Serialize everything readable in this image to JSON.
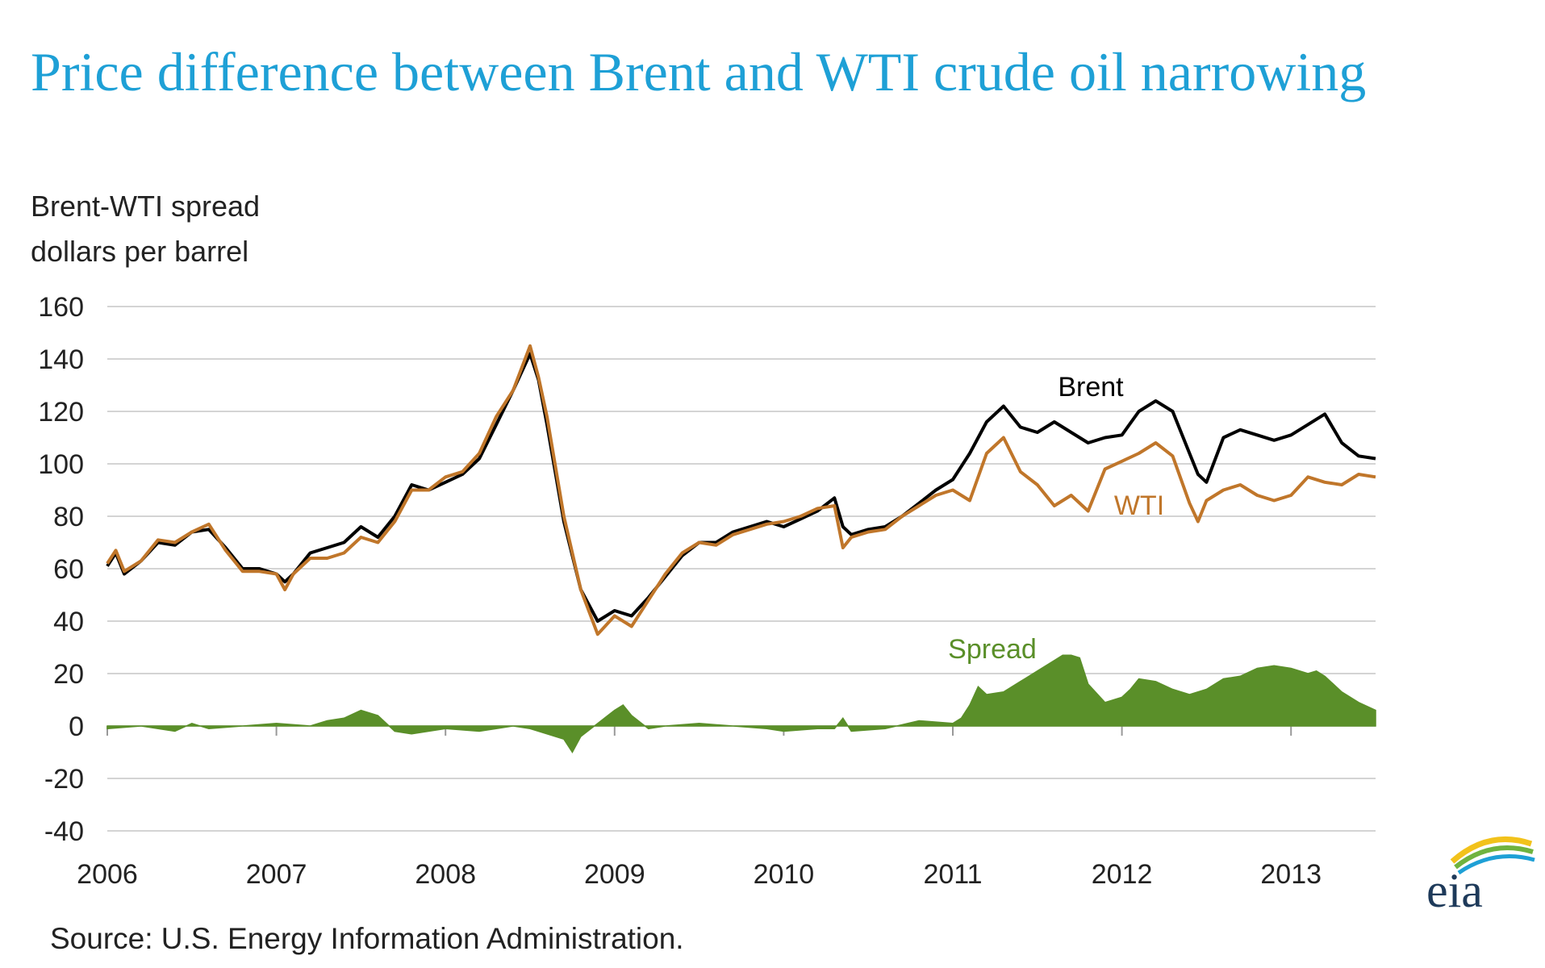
{
  "title": "Price difference between Brent and WTI crude oil narrowing",
  "source": "Source: U.S. Energy Information Administration.",
  "logo_text": "eia",
  "colors": {
    "title": "#1ea0d6",
    "brent": "#000000",
    "wti": "#c0762a",
    "spread": "#5a8f29",
    "grid": "#d4d4d4"
  },
  "chart_data": {
    "type": "line",
    "ylabel": [
      "Brent-WTI spread",
      "dollars per barrel"
    ],
    "ylim": [
      -40,
      160
    ],
    "yticks": [
      160,
      140,
      120,
      100,
      80,
      60,
      40,
      20,
      0,
      -20,
      -40
    ],
    "xlim": [
      2006.0,
      2013.5
    ],
    "xticks": [
      2006,
      2007,
      2008,
      2009,
      2010,
      2011,
      2012,
      2013
    ],
    "grid": true,
    "series": [
      {
        "name": "Brent",
        "color": "#000000",
        "x": [
          2006.0,
          2006.05,
          2006.1,
          2006.2,
          2006.3,
          2006.4,
          2006.5,
          2006.6,
          2006.7,
          2006.8,
          2006.9,
          2007.0,
          2007.05,
          2007.1,
          2007.2,
          2007.3,
          2007.4,
          2007.5,
          2007.6,
          2007.7,
          2007.8,
          2007.9,
          2008.0,
          2008.1,
          2008.2,
          2008.3,
          2008.4,
          2008.5,
          2008.55,
          2008.6,
          2008.7,
          2008.8,
          2008.9,
          2009.0,
          2009.1,
          2009.2,
          2009.3,
          2009.4,
          2009.5,
          2009.6,
          2009.7,
          2009.8,
          2009.9,
          2010.0,
          2010.1,
          2010.2,
          2010.3,
          2010.35,
          2010.4,
          2010.5,
          2010.6,
          2010.7,
          2010.8,
          2010.9,
          2011.0,
          2011.1,
          2011.2,
          2011.3,
          2011.4,
          2011.5,
          2011.6,
          2011.7,
          2011.8,
          2011.9,
          2012.0,
          2012.1,
          2012.2,
          2012.3,
          2012.4,
          2012.45,
          2012.5,
          2012.6,
          2012.7,
          2012.8,
          2012.9,
          2013.0,
          2013.1,
          2013.2,
          2013.3,
          2013.4,
          2013.5
        ],
        "y": [
          61,
          66,
          58,
          63,
          70,
          69,
          74,
          75,
          68,
          60,
          60,
          58,
          55,
          58,
          66,
          68,
          70,
          76,
          72,
          80,
          92,
          90,
          93,
          96,
          102,
          115,
          128,
          142,
          132,
          115,
          78,
          52,
          40,
          44,
          42,
          49,
          57,
          65,
          70,
          70,
          74,
          76,
          78,
          76,
          79,
          82,
          87,
          76,
          73,
          75,
          76,
          80,
          85,
          90,
          94,
          104,
          116,
          122,
          114,
          112,
          116,
          112,
          108,
          110,
          111,
          120,
          124,
          120,
          104,
          96,
          93,
          110,
          113,
          111,
          109,
          111,
          115,
          119,
          108,
          103,
          102
        ]
      },
      {
        "name": "WTI",
        "color": "#c0762a",
        "x": [
          2006.0,
          2006.05,
          2006.1,
          2006.2,
          2006.3,
          2006.4,
          2006.5,
          2006.6,
          2006.7,
          2006.8,
          2006.9,
          2007.0,
          2007.05,
          2007.1,
          2007.2,
          2007.3,
          2007.4,
          2007.5,
          2007.6,
          2007.7,
          2007.8,
          2007.9,
          2008.0,
          2008.1,
          2008.2,
          2008.3,
          2008.4,
          2008.5,
          2008.55,
          2008.6,
          2008.7,
          2008.8,
          2008.9,
          2009.0,
          2009.1,
          2009.2,
          2009.3,
          2009.4,
          2009.5,
          2009.6,
          2009.7,
          2009.8,
          2009.9,
          2010.0,
          2010.1,
          2010.2,
          2010.3,
          2010.35,
          2010.4,
          2010.5,
          2010.6,
          2010.7,
          2010.8,
          2010.9,
          2011.0,
          2011.1,
          2011.2,
          2011.3,
          2011.4,
          2011.5,
          2011.6,
          2011.7,
          2011.8,
          2011.9,
          2012.0,
          2012.1,
          2012.2,
          2012.3,
          2012.4,
          2012.45,
          2012.5,
          2012.6,
          2012.7,
          2012.8,
          2012.9,
          2013.0,
          2013.1,
          2013.2,
          2013.3,
          2013.4,
          2013.5
        ],
        "y": [
          62,
          67,
          59,
          63,
          71,
          70,
          74,
          77,
          67,
          59,
          59,
          58,
          52,
          58,
          64,
          64,
          66,
          72,
          70,
          78,
          90,
          90,
          95,
          97,
          104,
          118,
          128,
          145,
          133,
          118,
          80,
          52,
          35,
          42,
          38,
          48,
          58,
          66,
          70,
          69,
          73,
          75,
          77,
          78,
          80,
          83,
          84,
          68,
          72,
          74,
          75,
          80,
          84,
          88,
          90,
          86,
          104,
          110,
          97,
          92,
          84,
          88,
          82,
          98,
          101,
          104,
          108,
          103,
          85,
          78,
          86,
          90,
          92,
          88,
          86,
          88,
          95,
          93,
          92,
          96,
          95
        ]
      },
      {
        "name": "Spread",
        "color": "#5a8f29",
        "style": "area",
        "x": [
          2006.0,
          2006.2,
          2006.4,
          2006.5,
          2006.6,
          2006.8,
          2007.0,
          2007.2,
          2007.3,
          2007.4,
          2007.5,
          2007.6,
          2007.7,
          2007.8,
          2008.0,
          2008.2,
          2008.3,
          2008.4,
          2008.5,
          2008.6,
          2008.7,
          2008.75,
          2008.8,
          2008.9,
          2009.0,
          2009.05,
          2009.1,
          2009.2,
          2009.3,
          2009.5,
          2009.7,
          2009.9,
          2010.0,
          2010.2,
          2010.3,
          2010.35,
          2010.4,
          2010.6,
          2010.8,
          2011.0,
          2011.05,
          2011.1,
          2011.15,
          2011.2,
          2011.3,
          2011.4,
          2011.5,
          2011.6,
          2011.65,
          2011.7,
          2011.75,
          2011.8,
          2011.9,
          2012.0,
          2012.05,
          2012.1,
          2012.2,
          2012.3,
          2012.4,
          2012.5,
          2012.6,
          2012.7,
          2012.8,
          2012.9,
          2013.0,
          2013.1,
          2013.15,
          2013.2,
          2013.3,
          2013.4,
          2013.5
        ],
        "y": [
          -1,
          0,
          -2,
          1,
          -1,
          0,
          1,
          0,
          2,
          3,
          6,
          4,
          -2,
          -3,
          -1,
          -2,
          -1,
          0,
          -1,
          -3,
          -5,
          -10,
          -4,
          1,
          6,
          8,
          4,
          -1,
          0,
          1,
          0,
          -1,
          -2,
          -1,
          -1,
          3,
          -2,
          -1,
          2,
          1,
          3,
          8,
          15,
          12,
          13,
          17,
          21,
          25,
          27,
          27,
          26,
          16,
          9,
          11,
          14,
          18,
          17,
          14,
          12,
          14,
          18,
          19,
          22,
          23,
          22,
          20,
          21,
          19,
          13,
          9,
          6
        ]
      }
    ],
    "annotations": [
      {
        "text": "Brent",
        "series": "Brent"
      },
      {
        "text": "WTI",
        "series": "WTI"
      },
      {
        "text": "Spread",
        "series": "Spread"
      }
    ]
  }
}
